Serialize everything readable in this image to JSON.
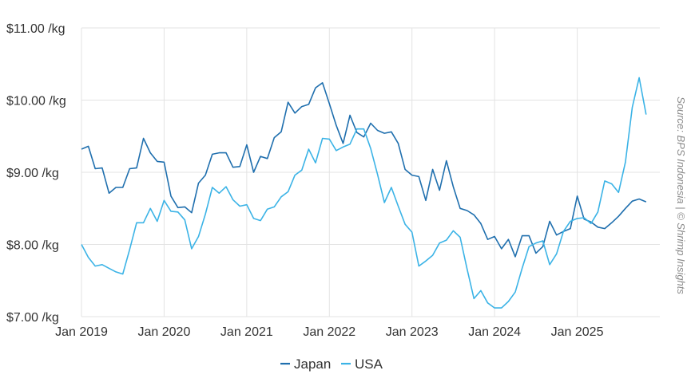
{
  "chart_data": {
    "type": "line",
    "title": "",
    "xlabel": "",
    "ylabel": "",
    "source": "Source: BPS Indonesia | © Shrimp Insights",
    "ylim": [
      7.0,
      11.0
    ],
    "y_ticks": [
      {
        "value": 7.0,
        "label": "$7.00 /kg"
      },
      {
        "value": 8.0,
        "label": "$8.00 /kg"
      },
      {
        "value": 9.0,
        "label": "$9.00 /kg"
      },
      {
        "value": 10.0,
        "label": "$10.00 /kg"
      },
      {
        "value": 11.0,
        "label": "$11.00 /kg"
      }
    ],
    "x_start": "2019-01",
    "x_ticks": [
      "Jan 2019",
      "Jan 2020",
      "Jan 2021",
      "Jan 2022",
      "Jan 2023",
      "Jan 2024",
      "Jan 2025"
    ],
    "grid": true,
    "legend_position": "bottom",
    "series": [
      {
        "name": "Japan",
        "color": "#1f6fae",
        "values": [
          9.32,
          9.36,
          9.05,
          9.06,
          8.71,
          8.79,
          8.79,
          9.05,
          9.06,
          9.47,
          9.27,
          9.15,
          9.14,
          8.67,
          8.51,
          8.52,
          8.44,
          8.85,
          8.96,
          9.25,
          9.27,
          9.27,
          9.07,
          9.08,
          9.38,
          9.0,
          9.22,
          9.19,
          9.48,
          9.56,
          9.97,
          9.82,
          9.91,
          9.94,
          10.17,
          10.24,
          9.95,
          9.65,
          9.4,
          9.79,
          9.55,
          9.49,
          9.68,
          9.58,
          9.54,
          9.56,
          9.4,
          9.04,
          8.96,
          8.94,
          8.61,
          9.04,
          8.75,
          9.16,
          8.8,
          8.5,
          8.47,
          8.41,
          8.29,
          8.07,
          8.11,
          7.94,
          8.07,
          7.83,
          8.12,
          8.12,
          7.88,
          7.97,
          8.32,
          8.13,
          8.18,
          8.22,
          8.67,
          8.35,
          8.31,
          8.24,
          8.22,
          8.3,
          8.39,
          8.5,
          8.6,
          8.63,
          8.59
        ]
      },
      {
        "name": "USA",
        "color": "#3bb3e6",
        "values": [
          8.0,
          7.82,
          7.7,
          7.72,
          7.67,
          7.62,
          7.59,
          7.93,
          8.3,
          8.3,
          8.5,
          8.32,
          8.61,
          8.46,
          8.45,
          8.34,
          7.94,
          8.11,
          8.42,
          8.79,
          8.71,
          8.8,
          8.62,
          8.53,
          8.55,
          8.36,
          8.33,
          8.49,
          8.52,
          8.66,
          8.73,
          8.96,
          9.03,
          9.32,
          9.13,
          9.47,
          9.46,
          9.3,
          9.35,
          9.39,
          9.6,
          9.6,
          9.33,
          8.97,
          8.58,
          8.79,
          8.53,
          8.28,
          8.17,
          7.7,
          7.77,
          7.85,
          8.02,
          8.06,
          8.19,
          8.1,
          7.66,
          7.25,
          7.36,
          7.19,
          7.12,
          7.12,
          7.21,
          7.34,
          7.67,
          7.97,
          8.02,
          8.05,
          7.72,
          7.87,
          8.18,
          8.32,
          8.36,
          8.37,
          8.29,
          8.45,
          8.88,
          8.84,
          8.72,
          9.14,
          9.9,
          10.31,
          9.8
        ]
      }
    ]
  }
}
